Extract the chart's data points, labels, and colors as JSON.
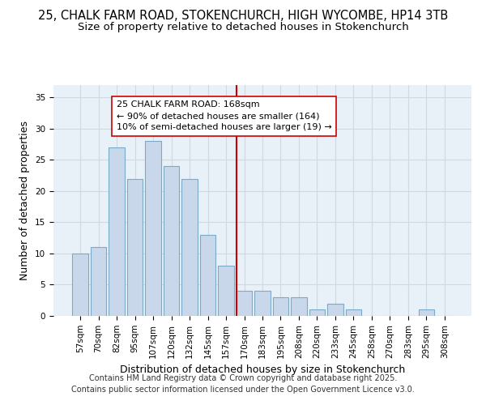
{
  "title_line1": "25, CHALK FARM ROAD, STOKENCHURCH, HIGH WYCOMBE, HP14 3TB",
  "title_line2": "Size of property relative to detached houses in Stokenchurch",
  "xlabel": "Distribution of detached houses by size in Stokenchurch",
  "ylabel": "Number of detached properties",
  "categories": [
    "57sqm",
    "70sqm",
    "82sqm",
    "95sqm",
    "107sqm",
    "120sqm",
    "132sqm",
    "145sqm",
    "157sqm",
    "170sqm",
    "183sqm",
    "195sqm",
    "208sqm",
    "220sqm",
    "233sqm",
    "245sqm",
    "258sqm",
    "270sqm",
    "283sqm",
    "295sqm",
    "308sqm"
  ],
  "values": [
    10,
    11,
    27,
    22,
    28,
    24,
    22,
    13,
    8,
    4,
    4,
    3,
    3,
    1,
    2,
    1,
    0,
    0,
    0,
    1,
    0
  ],
  "bar_color": "#c8d8ea",
  "bar_edge_color": "#7aaac8",
  "vline_color": "#cc0000",
  "annotation_text": "25 CHALK FARM ROAD: 168sqm\n← 90% of detached houses are smaller (164)\n10% of semi-detached houses are larger (19) →",
  "annotation_box_color": "#ffffff",
  "annotation_box_edge_color": "#cc0000",
  "ylim": [
    0,
    37
  ],
  "yticks": [
    0,
    5,
    10,
    15,
    20,
    25,
    30,
    35
  ],
  "grid_color": "#d0d8e4",
  "background_color": "#e8f0f8",
  "footer_line1": "Contains HM Land Registry data © Crown copyright and database right 2025.",
  "footer_line2": "Contains public sector information licensed under the Open Government Licence v3.0.",
  "title_fontsize": 10.5,
  "subtitle_fontsize": 9.5,
  "axis_label_fontsize": 9,
  "tick_fontsize": 7.5,
  "annotation_fontsize": 8,
  "footer_fontsize": 7.0,
  "vline_bar_index": 9
}
